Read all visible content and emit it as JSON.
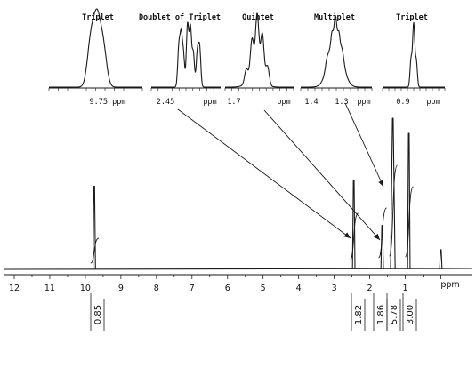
{
  "chart_data": {
    "type": "line",
    "title": "",
    "xlabel": "ppm",
    "ylabel": "",
    "xlim": [
      12.6,
      -0.3
    ],
    "x_axis_reversed": true,
    "x_ticks": [
      "12",
      "11",
      "10",
      "9",
      "8",
      "7",
      "6",
      "5",
      "4",
      "3",
      "2",
      "1",
      "ppm"
    ],
    "grid": false,
    "peaks": [
      {
        "ppm": 9.75,
        "rel_height": 0.55,
        "integral": "0.85"
      },
      {
        "ppm": 2.45,
        "rel_height": 0.59,
        "integral": "1.82"
      },
      {
        "ppm": 1.65,
        "rel_height": 0.29,
        "integral": "1.86"
      },
      {
        "ppm": 1.35,
        "rel_height": 1.0,
        "integral": "5.78"
      },
      {
        "ppm": 0.9,
        "rel_height": 0.9,
        "integral": "3.00"
      },
      {
        "ppm": 0.0,
        "rel_height": 0.13,
        "integral": ""
      }
    ],
    "insets": [
      {
        "title": "Triplet",
        "multiplicity": "t",
        "ticks": [
          "9.75 ppm"
        ],
        "points_to_ppm": 9.75
      },
      {
        "title": "Doublet of Triplet",
        "multiplicity": "dt",
        "ticks": [
          "2.45",
          "ppm"
        ],
        "points_to_ppm": 2.45
      },
      {
        "title": "Quintet",
        "multiplicity": "quintet",
        "ticks": [
          "1.7",
          "ppm"
        ],
        "points_to_ppm": 1.65
      },
      {
        "title": "Multiplet",
        "multiplicity": "m",
        "ticks": [
          "1.4",
          "1.3",
          "ppm"
        ],
        "points_to_ppm": 1.35
      },
      {
        "title": "Triplet",
        "multiplicity": "t",
        "ticks": [
          "0.9",
          "ppm"
        ],
        "points_to_ppm": 0.9
      }
    ]
  },
  "colors": {
    "ink": "#1a1a1a",
    "paper": "#ffffff"
  }
}
